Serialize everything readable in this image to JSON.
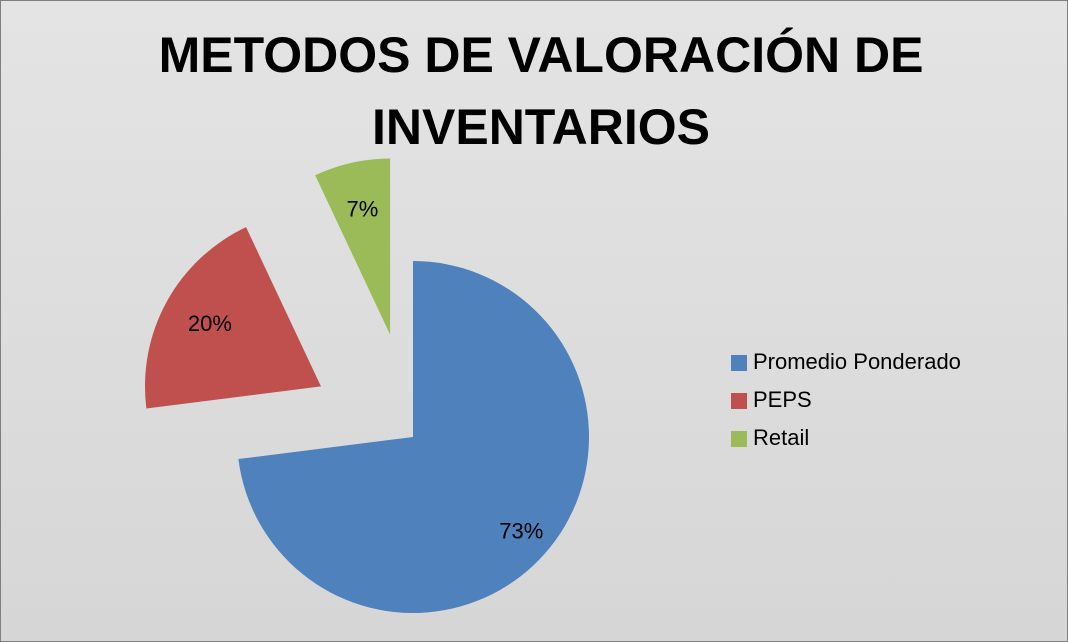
{
  "chart_data": {
    "type": "pie",
    "title": "METODOS DE VALORACIÓN DE INVENTARIOS",
    "categories": [
      "Promedio Ponderado",
      "PEPS",
      "Retail"
    ],
    "values": [
      73,
      20,
      7
    ],
    "value_labels": [
      "73%",
      "20%",
      "7%"
    ],
    "colors": [
      "#4f81bd",
      "#c0504d",
      "#9bbb59"
    ],
    "exploded": [
      false,
      true,
      true
    ],
    "legend": "right"
  }
}
